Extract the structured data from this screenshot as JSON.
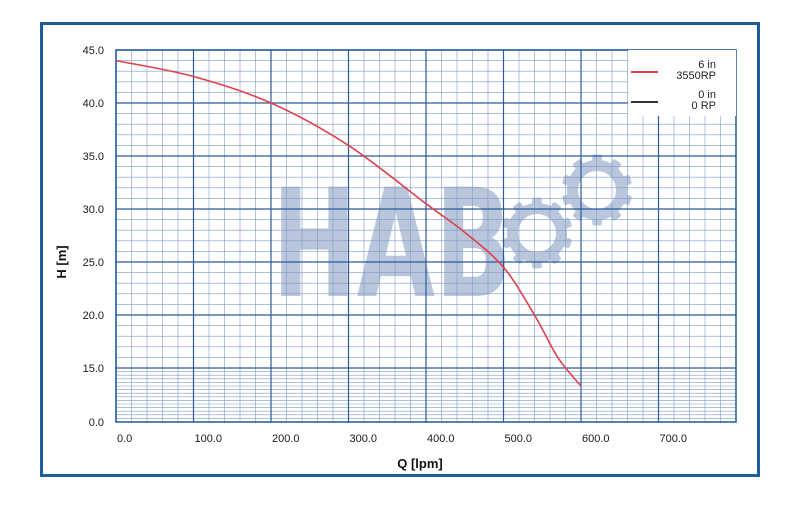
{
  "chart_data": {
    "type": "line",
    "title": "",
    "xlabel": "Q [lpm]",
    "ylabel": "H [m]",
    "xlim": [
      0,
      800
    ],
    "ylim": [
      0,
      45
    ],
    "x_ticks": [
      "0.0",
      "100.0",
      "200.0",
      "300.0",
      "400.0",
      "500.0",
      "600.0",
      "700.0"
    ],
    "y_ticks": [
      "0.0",
      "15.0",
      "20.0",
      "25.0",
      "30.0",
      "35.0",
      "40.0",
      "45.0"
    ],
    "grid": true,
    "legend_position": "top-right",
    "series": [
      {
        "name": "6 in 3550RP",
        "name_lines": [
          "6 in",
          "3550RP"
        ],
        "color": "#e0404a",
        "x": [
          0,
          100,
          200,
          300,
          400,
          450,
          500,
          540,
          570,
          600
        ],
        "y": [
          44,
          42.5,
          40,
          36,
          30.5,
          27.8,
          24.5,
          20,
          16,
          10
        ]
      },
      {
        "name": "0 in 0 RP",
        "name_lines": [
          "0 in",
          "0 RP"
        ],
        "color": "#333333",
        "x": [],
        "y": []
      }
    ]
  },
  "watermark": {
    "text": "HAB",
    "color": "#b9c6dc"
  }
}
